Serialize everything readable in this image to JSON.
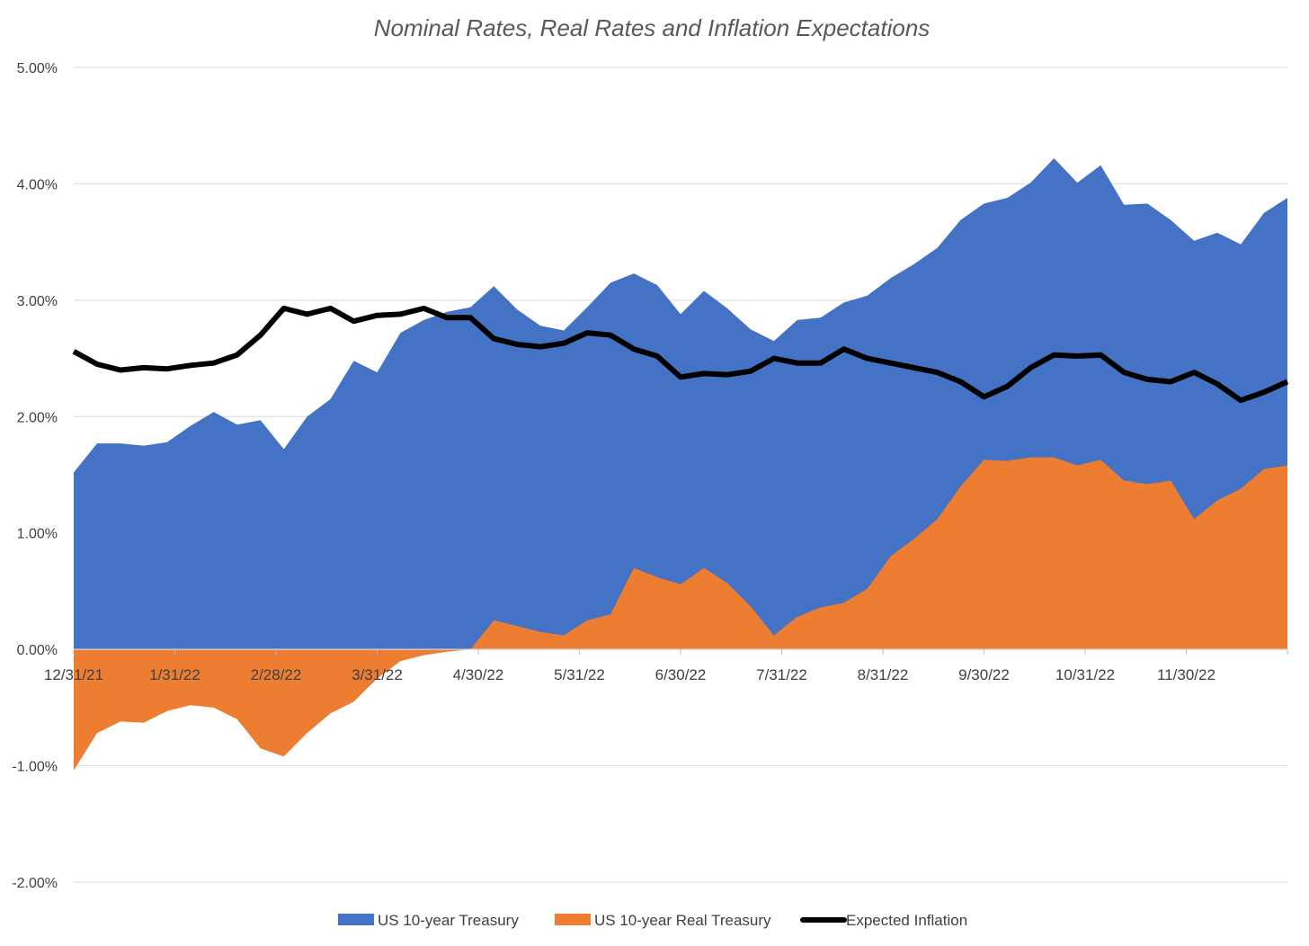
{
  "chart_data": {
    "type": "area",
    "title": "Nominal Rates, Real Rates and Inflation Expectations",
    "xlabel": "",
    "ylabel": "",
    "ylim": [
      -0.02,
      0.05
    ],
    "y_ticks": [
      "-2.00%",
      "-1.00%",
      "0.00%",
      "1.00%",
      "2.00%",
      "3.00%",
      "4.00%",
      "5.00%"
    ],
    "x_ticks": [
      "12/31/21",
      "1/31/22",
      "2/28/22",
      "3/31/22",
      "4/30/22",
      "5/31/22",
      "6/30/22",
      "7/31/22",
      "8/31/22",
      "9/30/22",
      "10/31/22",
      "11/30/22"
    ],
    "grid": true,
    "legend_position": "bottom",
    "colors": {
      "nominal": "#4472C4",
      "real": "#ED7D31",
      "inflation": "#000000"
    },
    "x": [
      "12/31/21",
      "1/7/22",
      "1/14/22",
      "1/21/22",
      "1/28/22",
      "2/4/22",
      "2/11/22",
      "2/18/22",
      "2/25/22",
      "3/4/22",
      "3/11/22",
      "3/18/22",
      "3/25/22",
      "4/1/22",
      "4/8/22",
      "4/15/22",
      "4/22/22",
      "4/29/22",
      "5/6/22",
      "5/13/22",
      "5/20/22",
      "5/27/22",
      "6/3/22",
      "6/10/22",
      "6/17/22",
      "6/24/22",
      "7/1/22",
      "7/8/22",
      "7/15/22",
      "7/22/22",
      "7/29/22",
      "8/5/22",
      "8/12/22",
      "8/19/22",
      "8/26/22",
      "9/2/22",
      "9/9/22",
      "9/16/22",
      "9/23/22",
      "9/30/22",
      "10/7/22",
      "10/14/22",
      "10/21/22",
      "10/28/22",
      "11/4/22",
      "11/11/22",
      "11/18/22",
      "11/25/22",
      "12/2/22",
      "12/9/22",
      "12/16/22",
      "12/23/22",
      "12/30/22"
    ],
    "series": [
      {
        "name": "US 10-year Treasury",
        "values": [
          1.52,
          1.77,
          1.77,
          1.75,
          1.78,
          1.92,
          2.04,
          1.93,
          1.97,
          1.72,
          2.0,
          2.15,
          2.48,
          2.38,
          2.72,
          2.83,
          2.9,
          2.94,
          3.12,
          2.92,
          2.78,
          2.74,
          2.94,
          3.15,
          3.23,
          3.13,
          2.88,
          3.08,
          2.93,
          2.75,
          2.65,
          2.83,
          2.85,
          2.98,
          3.04,
          3.19,
          3.31,
          3.45,
          3.69,
          3.83,
          3.88,
          4.01,
          4.22,
          4.01,
          4.16,
          3.82,
          3.83,
          3.69,
          3.51,
          3.58,
          3.48,
          3.75,
          3.88
        ]
      },
      {
        "name": "US 10-year Real Treasury",
        "values": [
          -1.04,
          -0.72,
          -0.62,
          -0.63,
          -0.53,
          -0.48,
          -0.5,
          -0.6,
          -0.85,
          -0.92,
          -0.72,
          -0.55,
          -0.45,
          -0.25,
          -0.1,
          -0.05,
          -0.02,
          0.0,
          0.25,
          0.2,
          0.15,
          0.12,
          0.25,
          0.3,
          0.7,
          0.62,
          0.56,
          0.7,
          0.57,
          0.37,
          0.12,
          0.28,
          0.36,
          0.4,
          0.52,
          0.8,
          0.95,
          1.12,
          1.4,
          1.63,
          1.62,
          1.65,
          1.65,
          1.58,
          1.63,
          1.45,
          1.42,
          1.45,
          1.12,
          1.28,
          1.38,
          1.55,
          1.58
        ]
      },
      {
        "name": "Expected Inflation",
        "values": [
          2.56,
          2.45,
          2.4,
          2.42,
          2.41,
          2.44,
          2.46,
          2.53,
          2.7,
          2.93,
          2.88,
          2.93,
          2.82,
          2.87,
          2.88,
          2.93,
          2.85,
          2.85,
          2.67,
          2.62,
          2.6,
          2.63,
          2.72,
          2.7,
          2.58,
          2.52,
          2.34,
          2.37,
          2.36,
          2.39,
          2.5,
          2.46,
          2.46,
          2.58,
          2.5,
          2.46,
          2.42,
          2.38,
          2.3,
          2.17,
          2.26,
          2.42,
          2.53,
          2.52,
          2.53,
          2.38,
          2.32,
          2.3,
          2.38,
          2.28,
          2.14,
          2.21,
          2.3
        ]
      }
    ]
  }
}
